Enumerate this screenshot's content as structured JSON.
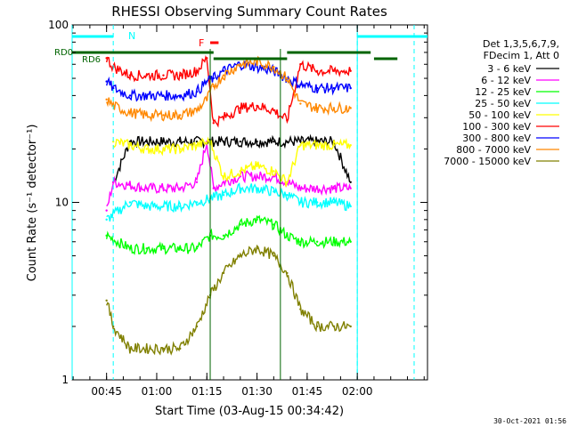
{
  "chart_data": {
    "type": "line",
    "title": "RHESSI Observing Summary Count Rates",
    "ylabel": "Count Rate (s⁻¹ detector⁻¹)",
    "xlabel": "Start Time (03-Aug-15 00:34:42)",
    "y_scale": "log",
    "ylim": [
      1,
      100
    ],
    "y_ticks": [
      {
        "value": 1,
        "label": "1"
      },
      {
        "value": 10,
        "label": "10"
      },
      {
        "value": 100,
        "label": "100"
      }
    ],
    "x_ticks": [
      "00:45",
      "01:00",
      "01:15",
      "01:30",
      "01:45",
      "02:00"
    ],
    "x_tick_times": [
      "00:45",
      "01:00",
      "01:15",
      "01:30",
      "01:45",
      "02:00"
    ],
    "x_range": [
      "00:34:42",
      "02:21:00"
    ],
    "legend_header": [
      "Det 1,3,5,6,7,9,",
      "FDecim 1, Att 0"
    ],
    "legend_position": "right",
    "series": [
      {
        "name": "3 - 6 keV",
        "color": "#000000",
        "x": [
          "00:47",
          "00:52",
          "00:57",
          "01:02",
          "01:07",
          "01:12",
          "01:16",
          "01:20",
          "01:25",
          "01:30",
          "01:35",
          "01:39",
          "01:43",
          "01:48",
          "01:53",
          "01:58"
        ],
        "values": [
          13,
          22,
          22,
          22,
          22,
          22,
          22,
          22,
          22,
          22,
          22,
          22,
          22,
          22,
          22,
          13
        ]
      },
      {
        "name": "6 - 12 keV",
        "color": "#ff00ff",
        "x": [
          "00:45",
          "00:47",
          "00:52",
          "00:57",
          "01:02",
          "01:07",
          "01:12",
          "01:15",
          "01:17",
          "01:20",
          "01:25",
          "01:30",
          "01:35",
          "01:39",
          "01:43",
          "01:48",
          "01:53",
          "01:58"
        ],
        "values": [
          9,
          13,
          12.5,
          12,
          12,
          12,
          13,
          22,
          12,
          13,
          14,
          14,
          14,
          13,
          12,
          12,
          12,
          12
        ]
      },
      {
        "name": "12 - 25 keV",
        "color": "#00ff00",
        "x": [
          "00:45",
          "00:52",
          "00:57",
          "01:02",
          "01:07",
          "01:12",
          "01:16",
          "01:20",
          "01:25",
          "01:30",
          "01:35",
          "01:39",
          "01:43",
          "01:48",
          "01:53",
          "01:58"
        ],
        "values": [
          6.5,
          5.5,
          5.5,
          5.5,
          5.5,
          5.5,
          6.5,
          6.5,
          7.5,
          8,
          7.5,
          6.5,
          6,
          6,
          6,
          6
        ]
      },
      {
        "name": "25 - 50 keV",
        "color": "#00ffff",
        "x": [
          "00:45",
          "00:52",
          "00:57",
          "01:02",
          "01:07",
          "01:12",
          "01:16",
          "01:20",
          "01:25",
          "01:30",
          "01:35",
          "01:39",
          "01:43",
          "01:48",
          "01:53",
          "01:58"
        ],
        "values": [
          8,
          10,
          9.5,
          9.5,
          9.5,
          10,
          10.5,
          11,
          12,
          12,
          11.5,
          11,
          10,
          10,
          10,
          9.5
        ]
      },
      {
        "name": "50 - 100 keV",
        "color": "#ffff00",
        "x": [
          "00:47",
          "00:52",
          "00:57",
          "01:02",
          "01:07",
          "01:12",
          "01:16",
          "01:20",
          "01:25",
          "01:30",
          "01:35",
          "01:39",
          "01:43",
          "01:48",
          "01:53",
          "01:58"
        ],
        "values": [
          22,
          21,
          20,
          20,
          20,
          21,
          22,
          14,
          15,
          16,
          15,
          13,
          21,
          21,
          21,
          21
        ]
      },
      {
        "name": "100 - 300 keV",
        "color": "#ff0000",
        "x": [
          "00:45",
          "00:47",
          "00:52",
          "00:57",
          "01:02",
          "01:07",
          "01:12",
          "01:15",
          "01:17",
          "01:20",
          "01:25",
          "01:30",
          "01:35",
          "01:39",
          "01:43",
          "01:48",
          "01:53",
          "01:58"
        ],
        "values": [
          65,
          58,
          52,
          52,
          52,
          52,
          55,
          65,
          28,
          30,
          34,
          35,
          33,
          29,
          60,
          55,
          55,
          55
        ]
      },
      {
        "name": "300 - 800 keV",
        "color": "#0000ff",
        "x": [
          "00:45",
          "00:47",
          "00:52",
          "00:57",
          "01:02",
          "01:07",
          "01:12",
          "01:15",
          "01:17",
          "01:20",
          "01:25",
          "01:30",
          "01:35",
          "01:39",
          "01:43",
          "01:48",
          "01:53",
          "01:58"
        ],
        "values": [
          48,
          44,
          40,
          40,
          40,
          40,
          42,
          48,
          50,
          55,
          60,
          58,
          55,
          50,
          46,
          44,
          44,
          44
        ]
      },
      {
        "name": "800 - 7000 keV",
        "color": "#ff8800",
        "x": [
          "00:45",
          "00:47",
          "00:52",
          "00:57",
          "01:02",
          "01:07",
          "01:12",
          "01:15",
          "01:17",
          "01:20",
          "01:25",
          "01:30",
          "01:35",
          "01:39",
          "01:43",
          "01:48",
          "01:53",
          "01:58"
        ],
        "values": [
          38,
          35,
          32,
          31,
          31,
          31,
          33,
          38,
          45,
          52,
          60,
          62,
          58,
          50,
          36,
          34,
          34,
          34
        ]
      },
      {
        "name": "7000 - 15000 keV",
        "color": "#808000",
        "x": [
          "00:45",
          "00:47",
          "00:52",
          "00:57",
          "01:02",
          "01:07",
          "01:12",
          "01:16",
          "01:20",
          "01:25",
          "01:30",
          "01:35",
          "01:39",
          "01:43",
          "01:48",
          "01:53",
          "01:58"
        ],
        "values": [
          2.8,
          2,
          1.5,
          1.5,
          1.5,
          1.5,
          2,
          3,
          4,
          5,
          5.5,
          5,
          4,
          2.5,
          2,
          2,
          2
        ]
      }
    ],
    "annotations": [
      {
        "text": "N",
        "color": "#00ffff"
      },
      {
        "text": "F",
        "color": "#ff0000"
      },
      {
        "text": "RD0",
        "color": "#006400"
      },
      {
        "text": "RD6",
        "color": "#006400"
      }
    ],
    "markers": {
      "night_bars": [
        [
          "00:34:42",
          "00:47:00"
        ],
        [
          "02:00:00",
          "02:21:00"
        ]
      ],
      "night_dashes": [
        "00:47:00",
        "02:00:00",
        "02:17:00"
      ],
      "night_solid": [
        "00:34:42",
        "02:00:00"
      ],
      "flare_interval": [
        "01:16:00",
        "01:18:30"
      ],
      "saa_lines": [
        "01:16:00",
        "01:37:00"
      ],
      "rd0_bars": [
        [
          "00:34:42",
          "01:17:00"
        ],
        [
          "01:39:00",
          "02:04:00"
        ]
      ],
      "rd6_bar": [
        "01:17:00",
        "01:39:00"
      ],
      "rd6_right": [
        "02:05:00",
        "02:12:00"
      ]
    },
    "timestamp": "30-Oct-2021 01:56"
  }
}
